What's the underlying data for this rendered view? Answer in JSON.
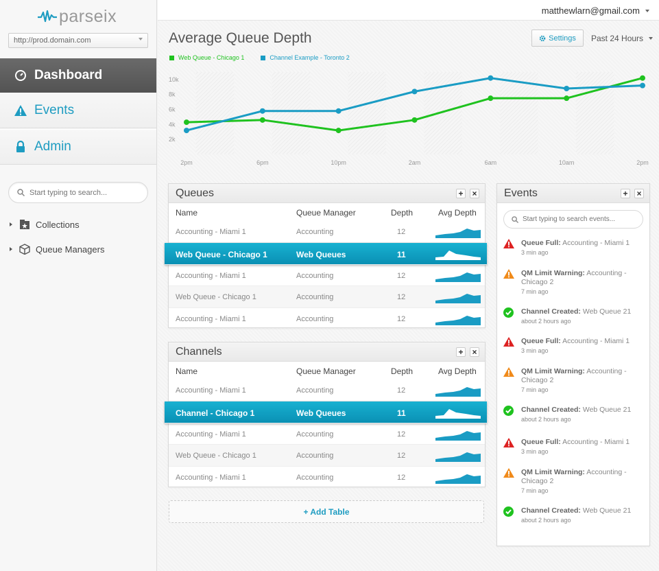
{
  "app": {
    "logo_text": "parseix",
    "url": "http://prod.domain.com"
  },
  "nav": [
    {
      "label": "Dashboard",
      "icon": "dashboard-icon",
      "active": true
    },
    {
      "label": "Events",
      "icon": "warning-icon",
      "active": false
    },
    {
      "label": "Admin",
      "icon": "lock-icon",
      "active": false
    }
  ],
  "sidebar": {
    "search_placeholder": "Start typing to search...",
    "tree": [
      {
        "label": "Collections",
        "icon": "collections-icon"
      },
      {
        "label": "Queue Managers",
        "icon": "cube-icon"
      }
    ]
  },
  "header": {
    "user": "matthewlarn@gmail.com"
  },
  "main": {
    "title": "Average Queue Depth",
    "settings_label": "Settings",
    "range_label": "Past 24 Hours",
    "add_table_label": "+ Add Table"
  },
  "colors": {
    "accent": "#1e9cc1",
    "green": "#1fc21f",
    "blue": "#1a9cc4",
    "red": "#dd2222",
    "orange": "#f08a1a"
  },
  "chart_data": {
    "type": "line",
    "x": [
      "2pm",
      "6pm",
      "10pm",
      "2am",
      "6am",
      "10am",
      "2pm"
    ],
    "y_ticks": [
      "10k",
      "8k",
      "6k",
      "4k",
      "2k"
    ],
    "ylim": [
      0,
      11000
    ],
    "series": [
      {
        "name": "Web Queue - Chicago 1",
        "color": "#1fc21f",
        "points": [
          [
            0,
            4300
          ],
          [
            1,
            4600
          ],
          [
            2,
            3200
          ],
          [
            3,
            4600
          ],
          [
            4,
            7500
          ],
          [
            5,
            7500
          ],
          [
            6,
            10200
          ]
        ]
      },
      {
        "name": "Channel Example - Toronto 2",
        "color": "#1a9cc4",
        "points": [
          [
            0,
            3200
          ],
          [
            1,
            5800
          ],
          [
            2,
            5800
          ],
          [
            3,
            8400
          ],
          [
            4,
            10200
          ],
          [
            5,
            8800
          ],
          [
            6,
            9200
          ]
        ]
      }
    ]
  },
  "tables": [
    {
      "title": "Queues",
      "headers": [
        "Name",
        "Queue Manager",
        "Depth",
        "Avg Depth"
      ],
      "rows": [
        {
          "name": "Accounting - Miami 1",
          "manager": "Accounting",
          "depth": "12",
          "selected": false
        },
        {
          "name": "Web Queue - Chicago 1",
          "manager": "Web Queues",
          "depth": "11",
          "selected": true
        },
        {
          "name": "Accounting - Miami 1",
          "manager": "Accounting",
          "depth": "12",
          "selected": false
        },
        {
          "name": "Web Queue - Chicago 1",
          "manager": "Accounting",
          "depth": "12",
          "selected": false
        },
        {
          "name": "Accounting - Miami 1",
          "manager": "Accounting",
          "depth": "12",
          "selected": false
        }
      ]
    },
    {
      "title": "Channels",
      "headers": [
        "Name",
        "Queue Manager",
        "Depth",
        "Avg Depth"
      ],
      "rows": [
        {
          "name": "Accounting - Miami 1",
          "manager": "Accounting",
          "depth": "12",
          "selected": false
        },
        {
          "name": "Channel - Chicago 1",
          "manager": "Web Queues",
          "depth": "11",
          "selected": true
        },
        {
          "name": "Accounting - Miami 1",
          "manager": "Accounting",
          "depth": "12",
          "selected": false
        },
        {
          "name": "Web Queue - Chicago 1",
          "manager": "Accounting",
          "depth": "12",
          "selected": false
        },
        {
          "name": "Accounting - Miami 1",
          "manager": "Accounting",
          "depth": "12",
          "selected": false
        }
      ]
    }
  ],
  "events": {
    "title": "Events",
    "search_placeholder": "Start typing to search events...",
    "items": [
      {
        "type": "error",
        "title": "Queue Full:",
        "detail": "Accounting - Miami 1",
        "time": "3 min ago"
      },
      {
        "type": "warning",
        "title": "QM Limit Warning:",
        "detail": "Accounting - Chicago 2",
        "time": "7 min ago"
      },
      {
        "type": "success",
        "title": "Channel Created:",
        "detail": "Web Queue 21",
        "time": "about 2 hours ago"
      },
      {
        "type": "error",
        "title": "Queue Full:",
        "detail": "Accounting - Miami 1",
        "time": "3 min ago"
      },
      {
        "type": "warning",
        "title": "QM Limit Warning:",
        "detail": "Accounting - Chicago 2",
        "time": "7 min ago"
      },
      {
        "type": "success",
        "title": "Channel Created:",
        "detail": "Web Queue 21",
        "time": "about 2 hours ago"
      },
      {
        "type": "error",
        "title": "Queue Full:",
        "detail": "Accounting - Miami 1",
        "time": "3 min ago"
      },
      {
        "type": "warning",
        "title": "QM Limit Warning:",
        "detail": "Accounting - Chicago 2",
        "time": "7 min ago"
      },
      {
        "type": "success",
        "title": "Channel Created:",
        "detail": "Web Queue 21",
        "time": "about 2 hours ago"
      }
    ]
  }
}
